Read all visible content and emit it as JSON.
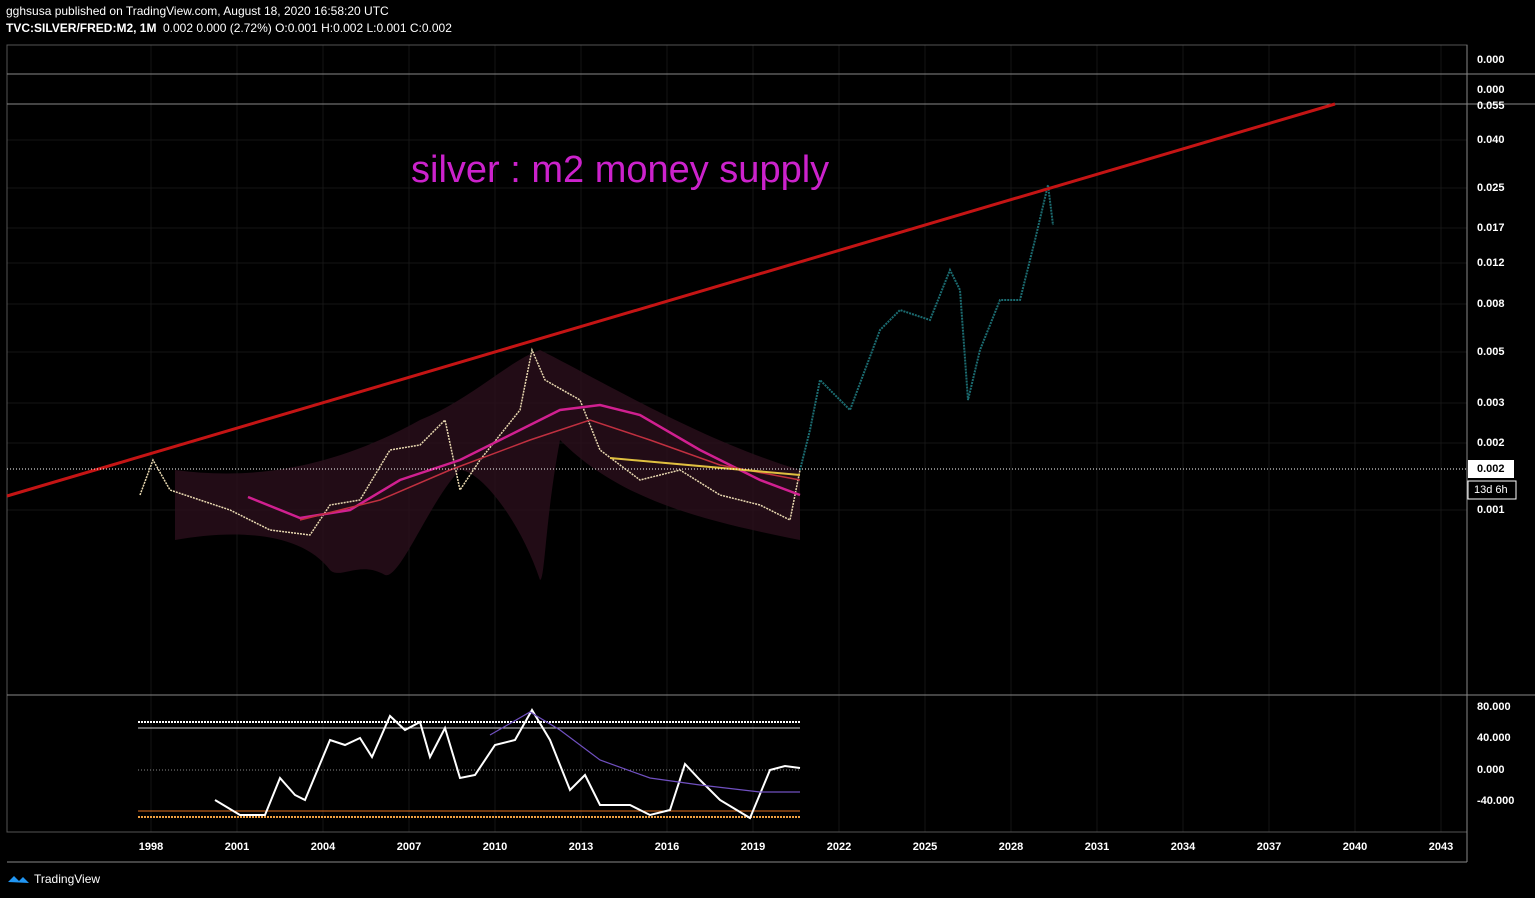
{
  "header": {
    "line1": "gghsusa published on TradingView.com, August 18, 2020 16:58:20 UTC",
    "symbol": "TVC:SILVER/FRED:M2, 1M",
    "quote": "0.002 0.000 (2.72%) O:0.001 H:0.002 L:0.001 C:0.002"
  },
  "annotation": "silver : m2 money supply",
  "price_axis": [
    "0.000",
    "0.000",
    "0.055",
    "0.040",
    "0.025",
    "0.017",
    "0.012",
    "0.008",
    "0.005",
    "0.003",
    "0.002",
    "0.001"
  ],
  "current_price": "0.002",
  "countdown": "13d 6h",
  "oscillator_axis": [
    "80.000",
    "40.000",
    "0.000",
    "-40.000"
  ],
  "time_axis": [
    "1998",
    "2001",
    "2004",
    "2007",
    "2010",
    "2013",
    "2016",
    "2019",
    "2022",
    "2025",
    "2028",
    "2031",
    "2034",
    "2037",
    "2040",
    "2043"
  ],
  "footer": "TradingView"
}
